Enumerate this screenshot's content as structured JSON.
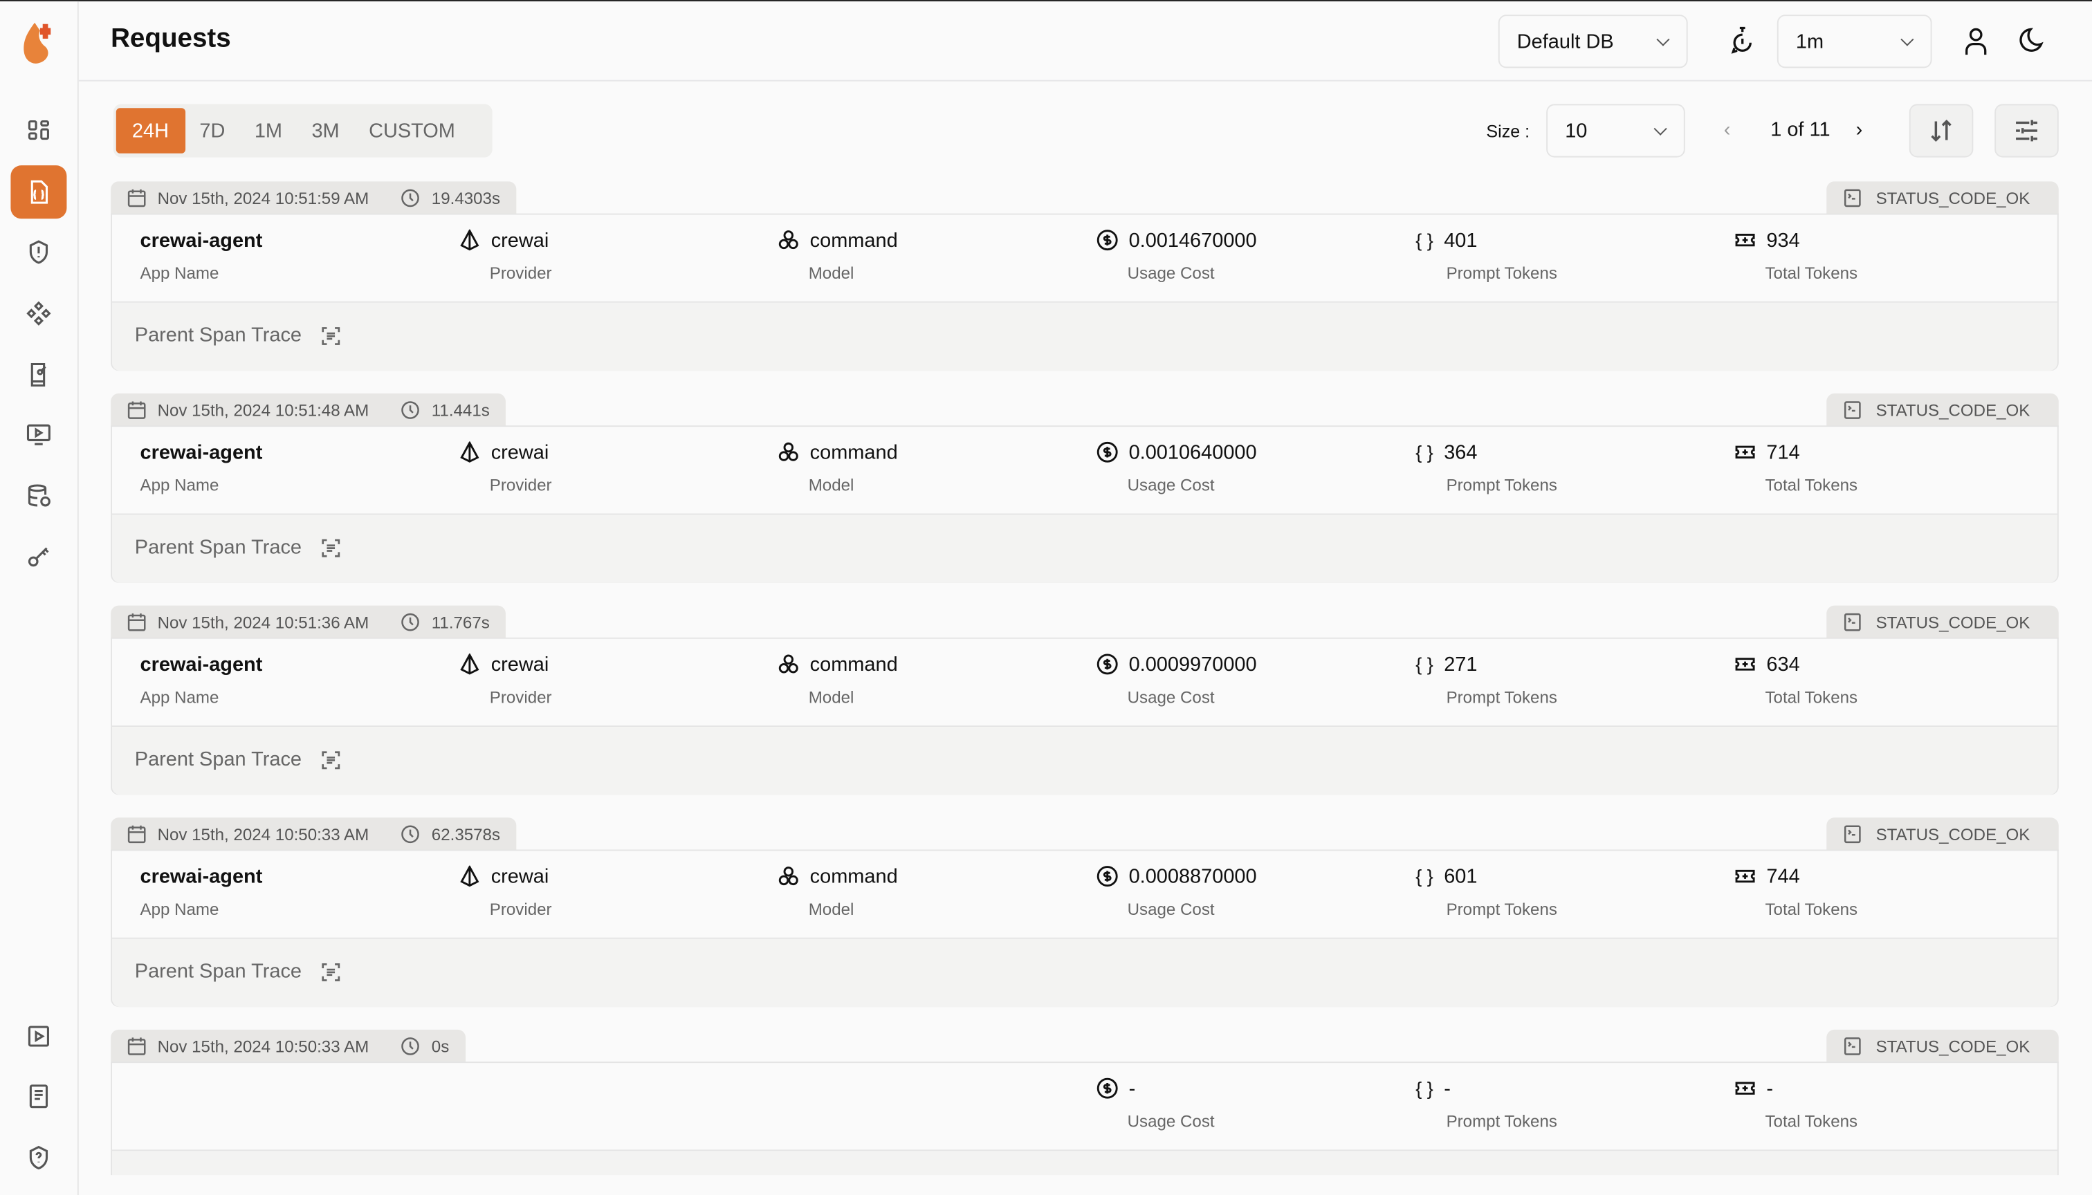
{
  "header": {
    "title": "Requests",
    "db_select": "Default DB",
    "refresh_select": "1m"
  },
  "sidebar": {
    "items": [
      {
        "icon": "dashboard-icon"
      },
      {
        "icon": "requests-icon",
        "active": true
      },
      {
        "icon": "exceptions-icon"
      },
      {
        "icon": "prompt-hub-icon"
      },
      {
        "icon": "evaluation-icon"
      },
      {
        "icon": "playground-icon"
      },
      {
        "icon": "database-config-icon"
      },
      {
        "icon": "vault-key-icon"
      }
    ],
    "bottom": [
      {
        "icon": "video-icon"
      },
      {
        "icon": "docs-icon"
      },
      {
        "icon": "shield-help-icon"
      }
    ]
  },
  "filters": {
    "tabs": [
      "24H",
      "7D",
      "1M",
      "3M",
      "CUSTOM"
    ],
    "active": "24H"
  },
  "pagination": {
    "size_label": "Size :",
    "size": "10",
    "page": "1 of 11"
  },
  "accent": "#E07430",
  "labels": {
    "app": "App Name",
    "provider": "Provider",
    "model": "Model",
    "cost": "Usage Cost",
    "prompt": "Prompt Tokens",
    "total": "Total Tokens",
    "parent": "Parent Span Trace"
  },
  "requests": [
    {
      "time": "Nov 15th, 2024 10:51:59 AM",
      "duration": "19.4303s",
      "status": "STATUS_CODE_OK",
      "app": "crewai-agent",
      "provider": "crewai",
      "model": "command",
      "cost": "0.0014670000",
      "prompt": "401",
      "total": "934"
    },
    {
      "time": "Nov 15th, 2024 10:51:48 AM",
      "duration": "11.441s",
      "status": "STATUS_CODE_OK",
      "app": "crewai-agent",
      "provider": "crewai",
      "model": "command",
      "cost": "0.0010640000",
      "prompt": "364",
      "total": "714"
    },
    {
      "time": "Nov 15th, 2024 10:51:36 AM",
      "duration": "11.767s",
      "status": "STATUS_CODE_OK",
      "app": "crewai-agent",
      "provider": "crewai",
      "model": "command",
      "cost": "0.0009970000",
      "prompt": "271",
      "total": "634"
    },
    {
      "time": "Nov 15th, 2024 10:50:33 AM",
      "duration": "62.3578s",
      "status": "STATUS_CODE_OK",
      "app": "crewai-agent",
      "provider": "crewai",
      "model": "command",
      "cost": "0.0008870000",
      "prompt": "601",
      "total": "744"
    },
    {
      "time": "Nov 15th, 2024 10:50:33 AM",
      "duration": "0s",
      "status": "STATUS_CODE_OK",
      "app": "",
      "provider": "",
      "model": "",
      "cost": "-",
      "prompt": "-",
      "total": "-"
    }
  ]
}
